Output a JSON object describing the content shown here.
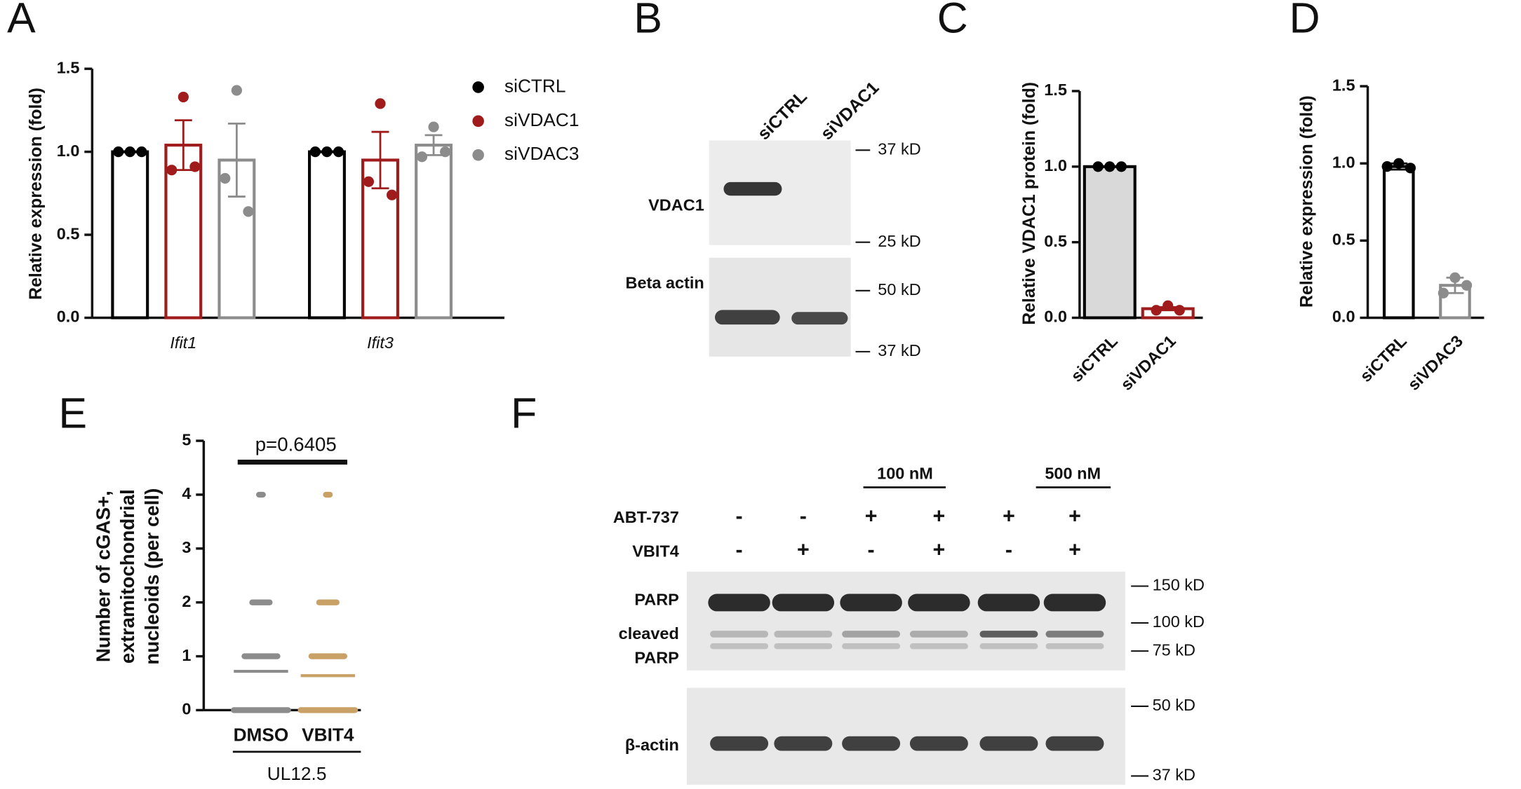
{
  "panel_labels": [
    "A",
    "B",
    "C",
    "D",
    "E",
    "F"
  ],
  "chart_data": [
    {
      "type": "bar",
      "ylabel": "Relative expression (fold)",
      "categories": [
        "Ifit1",
        "Ifit3"
      ],
      "ylim": [
        0,
        1.5
      ],
      "yticks": [
        {
          "value": 0,
          "label": "0.0"
        },
        {
          "value": 0.5,
          "label": "0.5"
        },
        {
          "value": 1,
          "label": "1.0"
        },
        {
          "value": 1.5,
          "label": "1.5"
        }
      ],
      "series": [
        {
          "name": "siCTRL",
          "color": "#000000",
          "values": [
            1.0,
            1.0
          ],
          "errors": [
            0,
            0
          ],
          "points": [
            [
              1,
              1,
              1
            ],
            [
              1,
              1,
              1
            ]
          ]
        },
        {
          "name": "siVDAC1",
          "color": "#a01c1c",
          "values": [
            1.04,
            0.95
          ],
          "errors": [
            0.15,
            0.17
          ],
          "points": [
            [
              0.89,
              1.33,
              0.91
            ],
            [
              0.82,
              1.29,
              0.74
            ]
          ]
        },
        {
          "name": "siVDAC3",
          "color": "#8c8c8c",
          "values": [
            0.95,
            1.04
          ],
          "errors": [
            0.22,
            0.06
          ],
          "points": [
            [
              0.84,
              1.37,
              0.64
            ],
            [
              0.97,
              1.15,
              1.0
            ]
          ]
        }
      ]
    },
    {
      "type": "bar",
      "ylabel": "Relative VDAC1 protein  (fold)",
      "categories": [
        "siCTRL",
        "siVDAC1"
      ],
      "ylim": [
        0,
        1.5
      ],
      "yticks": [
        {
          "value": 0,
          "label": "0.0"
        },
        {
          "value": 0.5,
          "label": "0.5"
        },
        {
          "value": 1,
          "label": "1.0"
        },
        {
          "value": 1.5,
          "label": "1.5"
        }
      ],
      "values": [
        1.0,
        0.06
      ],
      "errors": [
        0,
        0.01
      ],
      "colors": [
        "#000000",
        "#a01c1c"
      ],
      "fills": [
        "#d9d9d9",
        "#ffffff"
      ],
      "points": [
        [
          1,
          1,
          1
        ],
        [
          0.05,
          0.08,
          0.05
        ]
      ]
    },
    {
      "type": "bar",
      "ylabel": "Relative expression (fold)",
      "categories": [
        "siCTRL",
        "siVDAC3"
      ],
      "ylim": [
        0,
        1.5
      ],
      "yticks": [
        {
          "value": 0,
          "label": "0.0"
        },
        {
          "value": 0.5,
          "label": "0.5"
        },
        {
          "value": 1,
          "label": "1.0"
        },
        {
          "value": 1.5,
          "label": "1.5"
        }
      ],
      "values": [
        0.98,
        0.21
      ],
      "errors": [
        0.02,
        0.05
      ],
      "colors": [
        "#000000",
        "#8c8c8c"
      ],
      "fills": [
        "#ffffff",
        "#ffffff"
      ],
      "points": [
        [
          0.98,
          1.0,
          0.97
        ],
        [
          0.16,
          0.26,
          0.21
        ]
      ]
    },
    {
      "type": "dot",
      "ylabel": [
        "Number of cGAS+,",
        "extramitochondrial",
        "nucleoids (per cell)"
      ],
      "categories": [
        "DMSO",
        "VBIT4"
      ],
      "group_label": "UL12.5",
      "annotation": "p=0.6405",
      "ylim": [
        0,
        5
      ],
      "yticks": [
        0,
        1,
        2,
        3,
        4,
        5
      ],
      "colors": [
        "#8c8c8c",
        "#c9a065"
      ],
      "means": [
        0.72,
        0.64
      ],
      "points": [
        [
          0,
          1,
          2,
          4
        ],
        [
          0,
          1,
          2,
          4
        ]
      ]
    }
  ],
  "blot_b": {
    "lanes": [
      "siCTRL",
      "siVDAC1"
    ],
    "bands": [
      "VDAC1",
      "Beta actin"
    ],
    "markers": [
      "37 kD",
      "25 kD",
      "50 kD",
      "37 kD"
    ]
  },
  "blot_f": {
    "concentrations": [
      "100 nM",
      "500 nM"
    ],
    "rows": [
      "ABT-737",
      "VBIT4"
    ],
    "abt": [
      "-",
      "-",
      "+",
      "+",
      "+",
      "+"
    ],
    "vbit": [
      "-",
      "+",
      "-",
      "+",
      "-",
      "+"
    ],
    "bands": [
      "PARP",
      "β-actin"
    ],
    "cleaved": [
      "cleaved",
      "PARP"
    ],
    "markers": [
      "150 kD",
      "100 kD",
      "75 kD",
      "50 kD",
      "37 kD"
    ]
  }
}
